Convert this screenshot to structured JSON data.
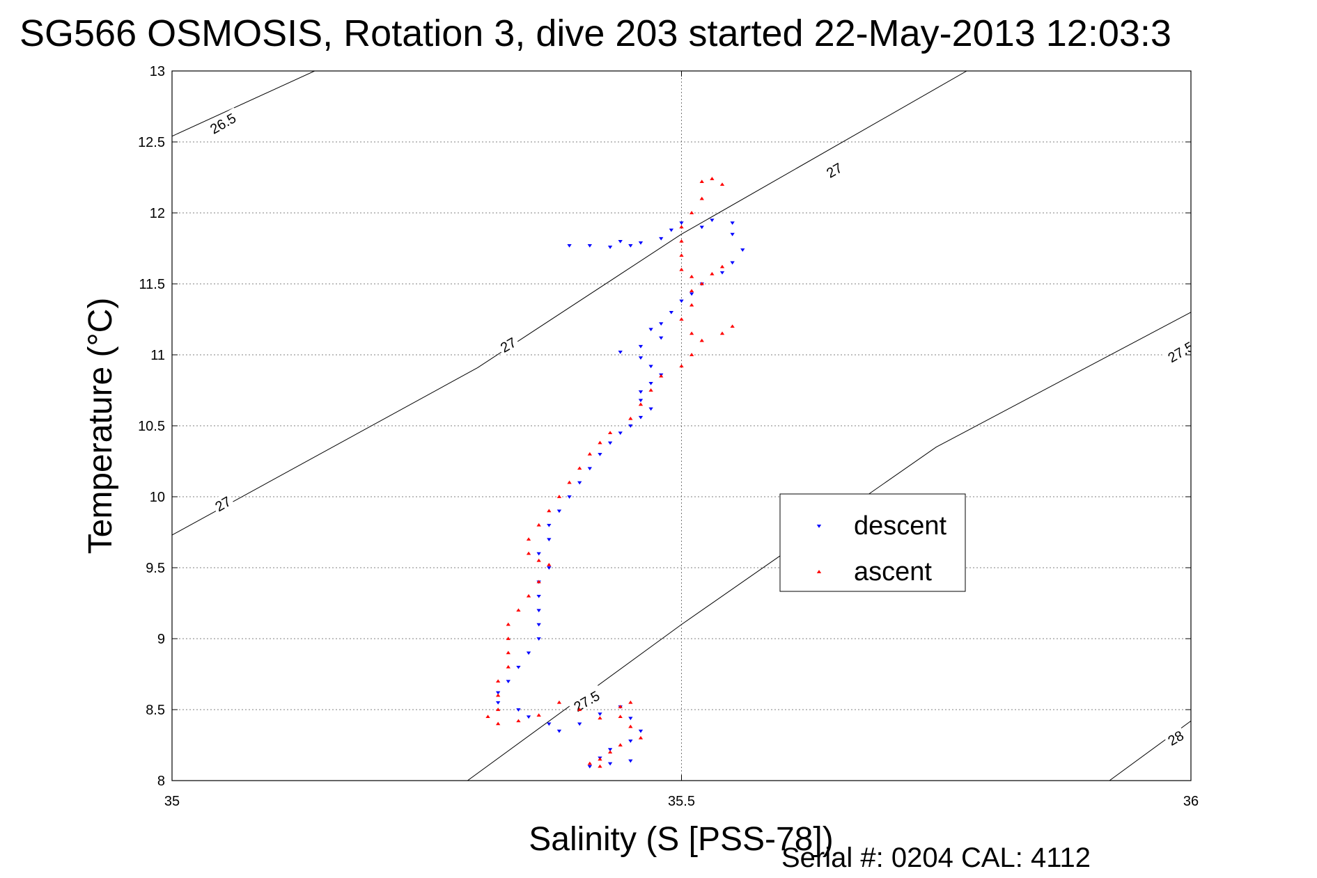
{
  "chart_data": {
    "type": "scatter",
    "title": "SG566 OSMOSIS, Rotation 3, dive 203 started 22-May-2013 12:03:3",
    "xlabel": "Salinity (S [PSS-78])",
    "ylabel": "Temperature (°C)",
    "xlim": [
      35,
      36
    ],
    "ylim": [
      8,
      13
    ],
    "x_ticks": [
      "35",
      "35.5",
      "36"
    ],
    "y_ticks": [
      "8",
      "8.5",
      "9",
      "9.5",
      "10",
      "10.5",
      "11",
      "11.5",
      "12",
      "12.5",
      "13"
    ],
    "grid": true,
    "legend": {
      "placement": "center-right",
      "entries": [
        "descent",
        "ascent"
      ]
    },
    "colors": {
      "descent": "#0000ff",
      "ascent": "#ff0000",
      "contour": "#000000"
    },
    "series": [
      {
        "name": "descent",
        "marker": "triangle-down",
        "points": [
          [
            35.39,
            11.77
          ],
          [
            35.41,
            11.77
          ],
          [
            35.43,
            11.76
          ],
          [
            35.45,
            11.77
          ],
          [
            35.44,
            11.8
          ],
          [
            35.46,
            11.79
          ],
          [
            35.48,
            11.82
          ],
          [
            35.49,
            11.88
          ],
          [
            35.5,
            11.93
          ],
          [
            35.52,
            11.9
          ],
          [
            35.53,
            11.95
          ],
          [
            35.55,
            11.93
          ],
          [
            35.55,
            11.85
          ],
          [
            35.56,
            11.74
          ],
          [
            35.55,
            11.65
          ],
          [
            35.54,
            11.58
          ],
          [
            35.52,
            11.5
          ],
          [
            35.51,
            11.43
          ],
          [
            35.5,
            11.38
          ],
          [
            35.49,
            11.3
          ],
          [
            35.48,
            11.22
          ],
          [
            35.47,
            11.18
          ],
          [
            35.48,
            11.12
          ],
          [
            35.46,
            11.06
          ],
          [
            35.44,
            11.02
          ],
          [
            35.46,
            10.98
          ],
          [
            35.47,
            10.92
          ],
          [
            35.48,
            10.86
          ],
          [
            35.47,
            10.8
          ],
          [
            35.46,
            10.74
          ],
          [
            35.46,
            10.68
          ],
          [
            35.47,
            10.62
          ],
          [
            35.46,
            10.56
          ],
          [
            35.45,
            10.5
          ],
          [
            35.44,
            10.45
          ],
          [
            35.43,
            10.38
          ],
          [
            35.42,
            10.3
          ],
          [
            35.41,
            10.2
          ],
          [
            35.4,
            10.1
          ],
          [
            35.39,
            10.0
          ],
          [
            35.38,
            9.9
          ],
          [
            35.37,
            9.8
          ],
          [
            35.37,
            9.7
          ],
          [
            35.36,
            9.6
          ],
          [
            35.37,
            9.5
          ],
          [
            35.36,
            9.4
          ],
          [
            35.36,
            9.3
          ],
          [
            35.36,
            9.2
          ],
          [
            35.36,
            9.1
          ],
          [
            35.36,
            9.0
          ],
          [
            35.35,
            8.9
          ],
          [
            35.34,
            8.8
          ],
          [
            35.33,
            8.7
          ],
          [
            35.32,
            8.62
          ],
          [
            35.32,
            8.55
          ],
          [
            35.34,
            8.5
          ],
          [
            35.35,
            8.45
          ],
          [
            35.37,
            8.4
          ],
          [
            35.38,
            8.35
          ],
          [
            35.4,
            8.4
          ],
          [
            35.42,
            8.47
          ],
          [
            35.44,
            8.52
          ],
          [
            35.45,
            8.44
          ],
          [
            35.46,
            8.35
          ],
          [
            35.45,
            8.28
          ],
          [
            35.43,
            8.22
          ],
          [
            35.42,
            8.16
          ],
          [
            35.41,
            8.1
          ],
          [
            35.43,
            8.12
          ],
          [
            35.45,
            8.14
          ]
        ]
      },
      {
        "name": "ascent",
        "marker": "triangle-up",
        "points": [
          [
            35.52,
            12.22
          ],
          [
            35.53,
            12.24
          ],
          [
            35.54,
            12.2
          ],
          [
            35.52,
            12.1
          ],
          [
            35.51,
            12.0
          ],
          [
            35.5,
            11.9
          ],
          [
            35.5,
            11.8
          ],
          [
            35.5,
            11.7
          ],
          [
            35.5,
            11.6
          ],
          [
            35.51,
            11.55
          ],
          [
            35.52,
            11.5
          ],
          [
            35.53,
            11.57
          ],
          [
            35.54,
            11.62
          ],
          [
            35.51,
            11.45
          ],
          [
            35.51,
            11.35
          ],
          [
            35.5,
            11.25
          ],
          [
            35.51,
            11.15
          ],
          [
            35.52,
            11.1
          ],
          [
            35.54,
            11.15
          ],
          [
            35.55,
            11.2
          ],
          [
            35.51,
            11.0
          ],
          [
            35.5,
            10.92
          ],
          [
            35.48,
            10.85
          ],
          [
            35.47,
            10.75
          ],
          [
            35.46,
            10.65
          ],
          [
            35.45,
            10.55
          ],
          [
            35.43,
            10.45
          ],
          [
            35.42,
            10.38
          ],
          [
            35.41,
            10.3
          ],
          [
            35.4,
            10.2
          ],
          [
            35.39,
            10.1
          ],
          [
            35.38,
            10.0
          ],
          [
            35.37,
            9.9
          ],
          [
            35.36,
            9.8
          ],
          [
            35.35,
            9.7
          ],
          [
            35.35,
            9.6
          ],
          [
            35.36,
            9.55
          ],
          [
            35.37,
            9.52
          ],
          [
            35.36,
            9.4
          ],
          [
            35.35,
            9.3
          ],
          [
            35.34,
            9.2
          ],
          [
            35.33,
            9.1
          ],
          [
            35.33,
            9.0
          ],
          [
            35.33,
            8.9
          ],
          [
            35.33,
            8.8
          ],
          [
            35.32,
            8.7
          ],
          [
            35.32,
            8.6
          ],
          [
            35.32,
            8.5
          ],
          [
            35.31,
            8.45
          ],
          [
            35.32,
            8.4
          ],
          [
            35.34,
            8.42
          ],
          [
            35.36,
            8.46
          ],
          [
            35.38,
            8.55
          ],
          [
            35.4,
            8.5
          ],
          [
            35.42,
            8.44
          ],
          [
            35.44,
            8.52
          ],
          [
            35.45,
            8.55
          ],
          [
            35.44,
            8.45
          ],
          [
            35.45,
            8.38
          ],
          [
            35.46,
            8.3
          ],
          [
            35.44,
            8.25
          ],
          [
            35.43,
            8.2
          ],
          [
            35.42,
            8.15
          ],
          [
            35.41,
            8.12
          ],
          [
            35.42,
            8.1
          ]
        ]
      }
    ],
    "contours": [
      {
        "label": "26.5",
        "points": [
          [
            35.0,
            12.54
          ],
          [
            35.14,
            13.0
          ]
        ]
      },
      {
        "label": "27",
        "points": [
          [
            35.0,
            9.73
          ],
          [
            35.3,
            10.91
          ],
          [
            35.5,
            11.85
          ],
          [
            35.78,
            13.0
          ]
        ]
      },
      {
        "label": "27.5",
        "points": [
          [
            35.29,
            8.0
          ],
          [
            35.5,
            9.1
          ],
          [
            35.75,
            10.35
          ],
          [
            36.0,
            11.3
          ]
        ]
      },
      {
        "label": "28",
        "points": [
          [
            35.92,
            8.0
          ],
          [
            36.0,
            8.42
          ]
        ]
      }
    ],
    "contour_labels": [
      {
        "text": "26.5",
        "at": [
          35.05,
          12.63
        ]
      },
      {
        "text": "27",
        "at": [
          35.65,
          12.3
        ]
      },
      {
        "text": "27",
        "at": [
          35.33,
          11.07
        ]
      },
      {
        "text": "27",
        "at": [
          35.05,
          9.95
        ]
      },
      {
        "text": "27.5",
        "at": [
          35.99,
          11.02
        ]
      },
      {
        "text": "27.5",
        "at": [
          35.407,
          8.56
        ]
      },
      {
        "text": "28",
        "at": [
          35.985,
          8.3
        ]
      }
    ],
    "footer": "Serial #: 0204  CAL: 4112"
  }
}
